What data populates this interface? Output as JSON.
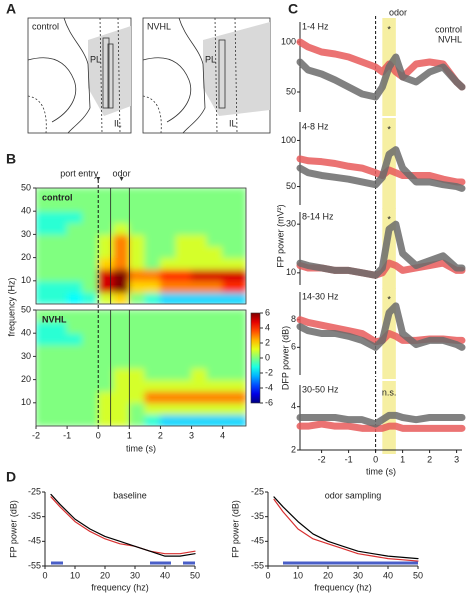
{
  "panel_a": {
    "panel": "A",
    "images": [
      {
        "title": "control",
        "regions": [
          "PL",
          "IL"
        ]
      },
      {
        "title": "NVHL",
        "regions": [
          "PL",
          "IL"
        ]
      }
    ]
  },
  "chart_data": [
    {
      "type": "heatmap",
      "panel": "B",
      "xlabel": "time (s)",
      "ylabel": "frequency (Hz)",
      "xlim": [
        -2,
        4.75
      ],
      "xticks": [
        -2,
        -1,
        0,
        1,
        2,
        3,
        4
      ],
      "ylim": [
        0,
        50
      ],
      "yticks": [
        10,
        20,
        30,
        40,
        50
      ],
      "xbins": [
        -2,
        -1.5,
        -1,
        -0.5,
        0,
        0.5,
        1,
        1.5,
        2,
        2.5,
        3,
        3.5,
        4,
        4.5,
        4.75
      ],
      "ybins": [
        0,
        5,
        10,
        15,
        20,
        25,
        30,
        35,
        40,
        45,
        50
      ],
      "events": [
        {
          "label": "port entry",
          "x": 0,
          "line": "dashed"
        },
        {
          "label": "odor",
          "x": 0.75
        }
      ],
      "odor_window": [
        0.4,
        1
      ],
      "panels": [
        {
          "title": "control",
          "z": [
            [
              -1,
              -1,
              -1.5,
              -1,
              1,
              2,
              0,
              -1,
              -2,
              -2,
              -2,
              -2,
              -2,
              -2
            ],
            [
              -1,
              -1,
              -1,
              0,
              5,
              6,
              2,
              2,
              3,
              3,
              3,
              3,
              4,
              4
            ],
            [
              0,
              0,
              0,
              0,
              5,
              6,
              3,
              3,
              4,
              4,
              5,
              5,
              5,
              5
            ],
            [
              0,
              0,
              0,
              0,
              2,
              3,
              1,
              0,
              1,
              1,
              1,
              1,
              1,
              1
            ],
            [
              0,
              0,
              0,
              0,
              1,
              3,
              1,
              0,
              0,
              1,
              1,
              1,
              0,
              0
            ],
            [
              0,
              0,
              0,
              0,
              1,
              3,
              1,
              0,
              0,
              1,
              1,
              0,
              0,
              0
            ],
            [
              -1,
              -1,
              0,
              0,
              0,
              1,
              0,
              0,
              0,
              0,
              0,
              0,
              0,
              0
            ],
            [
              -1,
              -1,
              -1,
              0,
              0,
              0,
              0,
              0,
              0,
              0,
              0,
              0,
              0,
              0
            ],
            [
              0,
              0,
              0,
              0,
              0,
              0,
              0,
              0,
              0,
              0,
              0,
              0,
              0,
              0
            ],
            [
              0,
              0,
              0,
              0,
              0,
              0,
              0,
              0,
              0,
              0,
              0,
              0,
              0,
              0
            ]
          ]
        },
        {
          "title": "NVHL",
          "z": [
            [
              0,
              0,
              0,
              0,
              1,
              1,
              0,
              -1,
              -2,
              -2,
              -2,
              -2,
              -2,
              -2
            ],
            [
              0,
              0,
              0,
              0,
              1,
              1,
              0,
              1,
              1,
              1,
              1,
              1,
              1,
              1
            ],
            [
              0,
              0,
              0,
              0,
              1,
              1,
              1,
              3,
              3,
              3,
              3,
              3,
              3,
              3
            ],
            [
              0,
              0,
              0,
              0,
              0,
              1,
              1,
              1,
              1,
              1,
              1,
              1,
              1,
              1
            ],
            [
              0,
              0,
              0,
              0,
              0,
              1,
              1,
              0,
              0,
              0,
              1,
              0,
              0,
              0
            ],
            [
              0,
              0,
              0,
              0,
              0,
              0,
              0,
              0,
              0,
              0,
              0,
              0,
              0,
              0
            ],
            [
              0,
              0,
              0,
              0,
              0,
              0,
              0,
              0,
              0,
              0,
              0,
              0,
              0,
              0
            ],
            [
              -1,
              -1,
              -1,
              0,
              0,
              0,
              0,
              0,
              0,
              0,
              0,
              0,
              0,
              0
            ],
            [
              -1,
              -1,
              0,
              0,
              0,
              0,
              0,
              0,
              0,
              0,
              0,
              0,
              0,
              0
            ],
            [
              0,
              0,
              0,
              0,
              0,
              0,
              0,
              0,
              0,
              0,
              0,
              0,
              0,
              0
            ]
          ]
        }
      ],
      "colorbar": {
        "label": "DFP power (dB)",
        "zlim": [
          -6,
          6
        ],
        "ticks": [
          6,
          4,
          2,
          0,
          -2,
          -4,
          -6
        ]
      }
    },
    {
      "type": "line",
      "panel": "C",
      "xlabel": "time (s)",
      "ylabel": "FP power (mV²)",
      "event_label": "odor",
      "event_x": 0,
      "odor_window": [
        0.25,
        0.75
      ],
      "window_color": "#f6efa2",
      "x": [
        -2.8,
        -2.5,
        -2,
        -1.5,
        -1,
        -0.5,
        0,
        0.25,
        0.5,
        0.75,
        1,
        1.5,
        2,
        2.5,
        3,
        3.2
      ],
      "xlim": [
        -2.8,
        3.2
      ],
      "xticks": [
        -2,
        -1,
        0,
        1,
        2,
        3
      ],
      "series": [
        {
          "name": "control",
          "color": "#6b6b6b"
        },
        {
          "name": "NVHL",
          "color": "#e85a5a"
        }
      ],
      "panels": [
        {
          "title": "1-4 Hz",
          "annotation": "*",
          "ylim": [
            30,
            120
          ],
          "yticks": [
            50,
            100
          ],
          "values": [
            [
              80,
              72,
              68,
              62,
              55,
              48,
              45,
              55,
              75,
              85,
              65,
              60,
              70,
              75,
              60,
              55
            ],
            [
              100,
              95,
              90,
              88,
              85,
              80,
              75,
              70,
              78,
              70,
              65,
              78,
              80,
              78,
              60,
              55
            ]
          ]
        },
        {
          "title": "4-8 Hz",
          "annotation": "*",
          "ylim": [
            30,
            120
          ],
          "yticks": [
            50,
            100
          ],
          "values": [
            [
              70,
              65,
              62,
              60,
              58,
              55,
              52,
              60,
              85,
              90,
              70,
              55,
              55,
              52,
              50,
              48
            ],
            [
              80,
              78,
              77,
              75,
              72,
              70,
              65,
              62,
              68,
              65,
              62,
              62,
              62,
              58,
              55,
              55
            ]
          ]
        },
        {
          "title": "8-14 Hz",
          "annotation": "*",
          "ylim": [
            5,
            35
          ],
          "yticks": [
            10,
            30
          ],
          "values": [
            [
              14,
              13,
              12,
              11,
              11,
              10,
              9,
              12,
              28,
              30,
              18,
              13,
              15,
              17,
              12,
              12
            ],
            [
              13,
              12,
              12,
              11,
              11,
              10,
              9,
              10,
              14,
              13,
              11,
              12,
              13,
              14,
              11,
              11
            ]
          ]
        },
        {
          "title": "14-30 Hz",
          "annotation": "*",
          "ylim": [
            4,
            10
          ],
          "yticks": [
            6,
            8
          ],
          "values": [
            [
              7.5,
              7.2,
              7,
              7,
              6.8,
              6.5,
              6,
              6.5,
              8.5,
              9,
              7,
              6.2,
              6.5,
              6.5,
              6.2,
              6
            ],
            [
              8,
              7.8,
              7.6,
              7.4,
              7.2,
              7,
              6.4,
              6.5,
              7,
              6.8,
              6.5,
              6.5,
              6.6,
              6.6,
              6.5,
              6.5
            ]
          ]
        },
        {
          "title": "30-50 Hz",
          "annotation": "n.s.",
          "ylim": [
            2,
            5
          ],
          "yticks": [
            2,
            4
          ],
          "values": [
            [
              3.5,
              3.5,
              3.5,
              3.5,
              3.4,
              3.4,
              3.2,
              3.4,
              3.6,
              3.6,
              3.5,
              3.4,
              3.5,
              3.5,
              3.5,
              3.5
            ],
            [
              3.1,
              3.1,
              3.2,
              3.1,
              3.1,
              3,
              3,
              3,
              3.1,
              3.1,
              3,
              3,
              3,
              3,
              3,
              3
            ]
          ]
        }
      ]
    },
    {
      "type": "line",
      "panel": "D",
      "xlabel": "frequency (hz)",
      "ylabel": "FP power (dB)",
      "x": [
        2,
        5,
        10,
        15,
        20,
        25,
        30,
        35,
        40,
        45,
        50
      ],
      "xlim": [
        0,
        50
      ],
      "xticks": [
        0,
        10,
        20,
        30,
        40,
        50
      ],
      "ylim": [
        -55,
        -25
      ],
      "yticks": [
        -25,
        -35,
        -45,
        -55
      ],
      "series": [
        {
          "color": "#000000"
        },
        {
          "color": "#d83030"
        }
      ],
      "significance_color": "#4a5fc8",
      "panels": [
        {
          "title": "baseline",
          "values": [
            [
              -26,
              -30,
              -36,
              -40,
              -43,
              -45,
              -47,
              -49,
              -51,
              -51,
              -50
            ],
            [
              -27,
              -31,
              -37,
              -41,
              -44,
              -46,
              -47,
              -49,
              -50,
              -50,
              -49
            ]
          ],
          "significance": [
            [
              2,
              6
            ],
            [
              35,
              42
            ],
            [
              46,
              50
            ]
          ]
        },
        {
          "title": "odor sampling",
          "values": [
            [
              -27,
              -31,
              -37,
              -42,
              -45,
              -47,
              -49,
              -50,
              -51,
              -51.5,
              -52
            ],
            [
              -28,
              -33,
              -40,
              -44,
              -46,
              -48,
              -50,
              -51,
              -52,
              -52.5,
              -53
            ]
          ],
          "significance": [
            [
              5,
              50
            ]
          ]
        }
      ]
    }
  ]
}
